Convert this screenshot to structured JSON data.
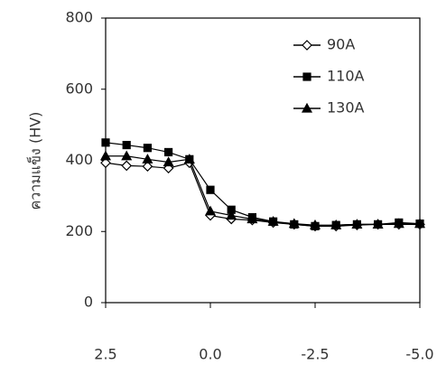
{
  "chart_data": {
    "type": "line",
    "ylabel": "ความแข็ง (HV)",
    "x": [
      2.5,
      2.0,
      1.5,
      1.0,
      0.5,
      0.0,
      -0.5,
      -1.0,
      -1.5,
      -2.0,
      -2.5,
      -3.0,
      -3.5,
      -4.0,
      -4.5,
      -5.0
    ],
    "xlim": [
      2.5,
      -5.0
    ],
    "xticks": [
      2.5,
      {
        "value": 0,
        "label": "0.0"
      },
      -2.5,
      {
        "value": -5,
        "label": "-5.0"
      }
    ],
    "ylim": [
      0,
      800
    ],
    "yticks": [
      0,
      200,
      400,
      600,
      800
    ],
    "legend": "upper right",
    "series": [
      {
        "name": "90A",
        "color": "#000000",
        "marker": "diamond-open",
        "values": [
          393,
          385,
          383,
          378,
          393,
          245,
          235,
          232,
          225,
          220,
          215,
          215,
          218,
          220,
          220,
          220
        ]
      },
      {
        "name": "110A",
        "color": "#000000",
        "marker": "square",
        "values": [
          450,
          443,
          435,
          423,
          403,
          317,
          261,
          240,
          228,
          220,
          215,
          218,
          220,
          220,
          225,
          222
        ]
      },
      {
        "name": "130A",
        "color": "#000000",
        "marker": "triangle",
        "values": [
          412,
          412,
          403,
          395,
          403,
          257,
          245,
          235,
          228,
          222,
          218,
          218,
          220,
          220,
          222,
          222
        ]
      }
    ]
  }
}
